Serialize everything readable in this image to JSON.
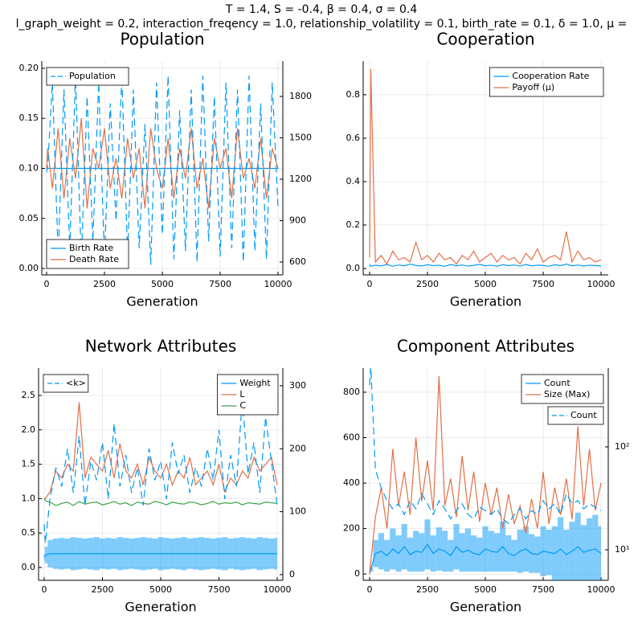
{
  "header": {
    "line1": "T = 1.4, S = -0.4, β = 0.4, σ = 0.4",
    "line2": "l_graph_weight = 0.2, interaction_freqency = 1.0, relationship_volatility = 0.1, birth_rate = 0.1, δ = 1.0, μ ="
  },
  "chart_data": [
    {
      "type": "line",
      "title": "Population",
      "xlabel": "Generation",
      "grid": true,
      "legend": "bottom-left",
      "legend2": "top-left",
      "x": [
        0,
        50,
        250,
        500,
        750,
        1000,
        1250,
        1500,
        1750,
        2000,
        2250,
        2500,
        2750,
        3000,
        3250,
        3500,
        3750,
        4000,
        4250,
        4500,
        4750,
        5000,
        5250,
        5500,
        5750,
        6000,
        6250,
        6500,
        6750,
        7000,
        7250,
        7500,
        7750,
        8000,
        8250,
        8500,
        8750,
        9000,
        9250,
        9500,
        9750,
        10000
      ],
      "xlim": [
        -208,
        10208
      ],
      "xticks": [
        0,
        2500,
        5000,
        7500,
        10000
      ],
      "ylim": [
        -0.0064,
        0.2072
      ],
      "yticks": [
        {
          "value": 0,
          "label": "0.00"
        },
        0.05,
        {
          "value": 0.1,
          "label": "0.10"
        },
        0.15,
        {
          "value": 0.2,
          "label": "0.20"
        }
      ],
      "y2lim": [
        507,
        2056
      ],
      "y2ticks": [
        600,
        900,
        1200,
        1500,
        1800
      ],
      "series": [
        {
          "name": "Birth Rate",
          "color": "#009af9",
          "values": [
            0.1,
            0.1,
            0.1,
            0.1,
            0.1,
            0.1,
            0.1,
            0.1,
            0.1,
            0.1,
            0.1,
            0.1,
            0.1,
            0.1,
            0.1,
            0.1,
            0.1,
            0.1,
            0.1,
            0.1,
            0.1,
            0.1,
            0.1,
            0.1,
            0.1,
            0.1,
            0.1,
            0.1,
            0.1,
            0.1,
            0.1,
            0.1,
            0.1,
            0.1,
            0.1,
            0.1,
            0.1,
            0.1,
            0.1,
            0.1,
            0.1,
            0.1
          ]
        },
        {
          "name": "Death Rate",
          "color": "#e26f46",
          "values": [
            0.1,
            0.12,
            0.08,
            0.14,
            0.07,
            0.13,
            0.09,
            0.15,
            0.06,
            0.12,
            0.1,
            0.14,
            0.08,
            0.11,
            0.07,
            0.13,
            0.09,
            0.12,
            0.06,
            0.14,
            0.1,
            0.08,
            0.13,
            0.07,
            0.12,
            0.09,
            0.14,
            0.08,
            0.11,
            0.06,
            0.13,
            0.1,
            0.12,
            0.07,
            0.14,
            0.09,
            0.11,
            0.08,
            0.13,
            0.07,
            0.12,
            0.1
          ]
        },
        {
          "name": "Population",
          "color": "#009af9",
          "axis": "y2",
          "dash": true,
          "values": [
            1250,
            1300,
            1900,
            650,
            1850,
            700,
            1950,
            600,
            1800,
            750,
            1900,
            620,
            1750,
            900,
            1950,
            650,
            1850,
            700,
            1600,
            580,
            1900,
            800,
            1950,
            620,
            1700,
            680,
            1850,
            600,
            1950,
            750,
            1800,
            640,
            1900,
            700,
            1850,
            600,
            1950,
            680,
            1750,
            620,
            1900,
            1000
          ]
        }
      ]
    },
    {
      "type": "line",
      "title": "Cooperation",
      "xlabel": "Generation",
      "grid": true,
      "legend": "top-right",
      "x": [
        0,
        50,
        250,
        500,
        750,
        1000,
        1250,
        1500,
        1750,
        2000,
        2250,
        2500,
        2750,
        3000,
        3250,
        3500,
        3750,
        4000,
        4250,
        4500,
        4750,
        5000,
        5250,
        5500,
        5750,
        6000,
        6250,
        6500,
        6750,
        7000,
        7250,
        7500,
        7750,
        8000,
        8250,
        8500,
        8750,
        9000,
        9250,
        9500,
        9750,
        10000
      ],
      "xlim": [
        -278,
        10312
      ],
      "xticks": [
        0,
        2500,
        5000,
        7500,
        10000
      ],
      "ylim": [
        -0.0296,
        0.955
      ],
      "yticks": [
        {
          "value": 0,
          "label": "0.0"
        },
        0.2,
        0.4,
        0.6,
        0.8
      ],
      "series": [
        {
          "name": "Cooperation Rate",
          "color": "#009af9",
          "values": [
            0.02,
            0.01,
            0.015,
            0.012,
            0.018,
            0.01,
            0.016,
            0.012,
            0.02,
            0.014,
            0.011,
            0.017,
            0.013,
            0.015,
            0.01,
            0.018,
            0.012,
            0.016,
            0.011,
            0.014,
            0.019,
            0.012,
            0.015,
            0.01,
            0.017,
            0.013,
            0.016,
            0.011,
            0.018,
            0.012,
            0.015,
            0.014,
            0.01,
            0.017,
            0.013,
            0.02,
            0.012,
            0.016,
            0.011,
            0.015,
            0.013,
            0.012
          ]
        },
        {
          "name": "Payoff (μ)",
          "color": "#e26f46",
          "values": [
            0.05,
            0.92,
            0.03,
            0.06,
            0.02,
            0.08,
            0.04,
            0.05,
            0.03,
            0.12,
            0.04,
            0.06,
            0.03,
            0.07,
            0.04,
            0.05,
            0.02,
            0.06,
            0.04,
            0.08,
            0.03,
            0.05,
            0.07,
            0.03,
            0.06,
            0.04,
            0.05,
            0.02,
            0.07,
            0.04,
            0.09,
            0.03,
            0.05,
            0.06,
            0.04,
            0.17,
            0.03,
            0.08,
            0.04,
            0.05,
            0.03,
            0.04
          ]
        }
      ]
    },
    {
      "type": "line",
      "title": "Network Attributes",
      "xlabel": "Generation",
      "grid": true,
      "legend": "top-right",
      "legend2": "top-left",
      "x": [
        0,
        50,
        250,
        500,
        750,
        1000,
        1250,
        1500,
        1750,
        2000,
        2250,
        2500,
        2750,
        3000,
        3250,
        3500,
        3750,
        4000,
        4250,
        4500,
        4750,
        5000,
        5250,
        5500,
        5750,
        6000,
        6250,
        6500,
        6750,
        7000,
        7250,
        7500,
        7750,
        8000,
        8250,
        8500,
        8750,
        9000,
        9250,
        9500,
        9750,
        10000
      ],
      "xlim": [
        -241,
        10241
      ],
      "xticks": [
        0,
        2500,
        5000,
        7500,
        10000
      ],
      "ylim": [
        -0.187,
        2.897
      ],
      "yticks": [
        {
          "value": 0,
          "label": "0.0"
        },
        0.5,
        {
          "value": 1,
          "label": "1.0"
        },
        1.5,
        {
          "value": 2,
          "label": "2.0"
        },
        2.5
      ],
      "y2lim": [
        -9,
        328
      ],
      "y2ticks": [
        0,
        100,
        200,
        300
      ],
      "series": [
        {
          "name": "Weight",
          "color": "#009af9",
          "values": [
            0.15,
            0.18,
            0.2,
            0.2,
            0.2,
            0.2,
            0.2,
            0.2,
            0.2,
            0.2,
            0.2,
            0.2,
            0.2,
            0.2,
            0.2,
            0.2,
            0.2,
            0.2,
            0.2,
            0.2,
            0.2,
            0.2,
            0.2,
            0.2,
            0.2,
            0.2,
            0.2,
            0.2,
            0.2,
            0.2,
            0.2,
            0.2,
            0.2,
            0.2,
            0.2,
            0.2,
            0.2,
            0.2,
            0.2,
            0.2,
            0.2,
            0.2
          ],
          "errors": [
            0.05,
            0.12,
            0.2,
            0.22,
            0.23,
            0.22,
            0.24,
            0.23,
            0.22,
            0.23,
            0.24,
            0.22,
            0.23,
            0.22,
            0.24,
            0.23,
            0.22,
            0.23,
            0.24,
            0.23,
            0.22,
            0.24,
            0.23,
            0.22,
            0.23,
            0.24,
            0.22,
            0.23,
            0.24,
            0.23,
            0.22,
            0.23,
            0.24,
            0.22,
            0.23,
            0.24,
            0.23,
            0.22,
            0.24,
            0.23,
            0.22,
            0.23
          ]
        },
        {
          "name": "L",
          "color": "#e26f46",
          "values": [
            1.0,
            1.0,
            1.1,
            1.4,
            1.3,
            1.5,
            1.4,
            2.4,
            1.3,
            1.6,
            1.5,
            1.4,
            1.7,
            1.3,
            1.8,
            1.4,
            1.3,
            1.5,
            1.2,
            1.6,
            1.4,
            1.3,
            1.5,
            1.2,
            1.4,
            1.3,
            1.6,
            1.2,
            1.3,
            1.4,
            1.2,
            1.5,
            1.1,
            1.3,
            1.2,
            1.4,
            1.3,
            1.6,
            1.4,
            1.5,
            1.6,
            1.2
          ]
        },
        {
          "name": "C",
          "color": "#3da44d",
          "values": [
            1.0,
            0.97,
            0.95,
            0.9,
            0.93,
            0.95,
            0.9,
            0.96,
            0.92,
            0.94,
            0.95,
            0.91,
            0.93,
            0.96,
            0.92,
            0.94,
            0.9,
            0.95,
            0.93,
            0.92,
            0.96,
            0.94,
            0.91,
            0.95,
            0.93,
            0.92,
            0.95,
            0.94,
            0.91,
            0.93,
            0.96,
            0.92,
            0.94,
            0.93,
            0.95,
            0.91,
            0.94,
            0.93,
            0.92,
            0.95,
            0.94,
            0.93
          ]
        },
        {
          "name": "<k>",
          "color": "#009af9",
          "axis": "y2",
          "dash": true,
          "values": [
            80,
            50,
            120,
            170,
            140,
            200,
            130,
            220,
            110,
            180,
            150,
            210,
            120,
            240,
            140,
            190,
            130,
            170,
            110,
            200,
            150,
            180,
            120,
            210,
            160,
            190,
            130,
            170,
            140,
            200,
            150,
            230,
            120,
            190,
            140,
            280,
            160,
            210,
            130,
            250,
            180,
            110
          ]
        }
      ]
    },
    {
      "type": "line",
      "title": "Component Attributes",
      "xlabel": "Generation",
      "grid": true,
      "legend": "top-right",
      "legend2": "top-right",
      "y2scale": "log",
      "x": [
        0,
        50,
        250,
        500,
        750,
        1000,
        1250,
        1500,
        1750,
        2000,
        2250,
        2500,
        2750,
        3000,
        3250,
        3500,
        3750,
        4000,
        4250,
        4500,
        4750,
        5000,
        5250,
        5500,
        5750,
        6000,
        6250,
        6500,
        6750,
        7000,
        7250,
        7500,
        7750,
        8000,
        8250,
        8500,
        8750,
        9000,
        9250,
        9500,
        9750,
        10000
      ],
      "xlim": [
        -278,
        10312
      ],
      "xticks": [
        0,
        2500,
        5000,
        7500,
        10000
      ],
      "ylim": [
        -28,
        906
      ],
      "yticks": [
        0,
        200,
        400,
        600,
        800
      ],
      "y2lim": [
        5.05,
        583
      ],
      "y2ticks": [
        {
          "value": 10,
          "label": "10¹"
        },
        {
          "value": 100,
          "label": "10²"
        }
      ],
      "series": [
        {
          "name": "Count",
          "color": "#009af9",
          "values": [
            0,
            20,
            90,
            100,
            80,
            110,
            90,
            120,
            85,
            100,
            95,
            130,
            90,
            110,
            100,
            80,
            120,
            95,
            105,
            90,
            85,
            110,
            100,
            95,
            120,
            90,
            80,
            100,
            110,
            90,
            85,
            100,
            95,
            90,
            110,
            85,
            100,
            120,
            95,
            105,
            110,
            90
          ],
          "errors": [
            0,
            10,
            60,
            80,
            70,
            90,
            80,
            100,
            75,
            90,
            85,
            110,
            80,
            95,
            90,
            70,
            100,
            85,
            95,
            80,
            75,
            100,
            90,
            85,
            110,
            80,
            70,
            95,
            100,
            85,
            80,
            110,
            100,
            120,
            140,
            110,
            130,
            150,
            120,
            140,
            150,
            120
          ]
        },
        {
          "name": "Size (Max)",
          "color": "#e26f46",
          "values": [
            0,
            50,
            250,
            380,
            200,
            550,
            300,
            450,
            260,
            600,
            320,
            500,
            280,
            870,
            300,
            420,
            250,
            520,
            280,
            450,
            230,
            400,
            260,
            380,
            200,
            350,
            220,
            300,
            180,
            330,
            200,
            450,
            220,
            380,
            260,
            420,
            240,
            650,
            300,
            550,
            280,
            400
          ]
        },
        {
          "name": "Count",
          "color": "#009af9",
          "axis": "y2",
          "dash": true,
          "values": [
            400,
            600,
            60,
            40,
            30,
            25,
            28,
            22,
            30,
            25,
            35,
            28,
            22,
            30,
            25,
            20,
            24,
            28,
            22,
            20,
            26,
            24,
            22,
            25,
            20,
            18,
            22,
            25,
            20,
            24,
            22,
            30,
            25,
            28,
            22,
            35,
            28,
            30,
            25,
            28,
            26,
            24
          ]
        }
      ]
    }
  ]
}
